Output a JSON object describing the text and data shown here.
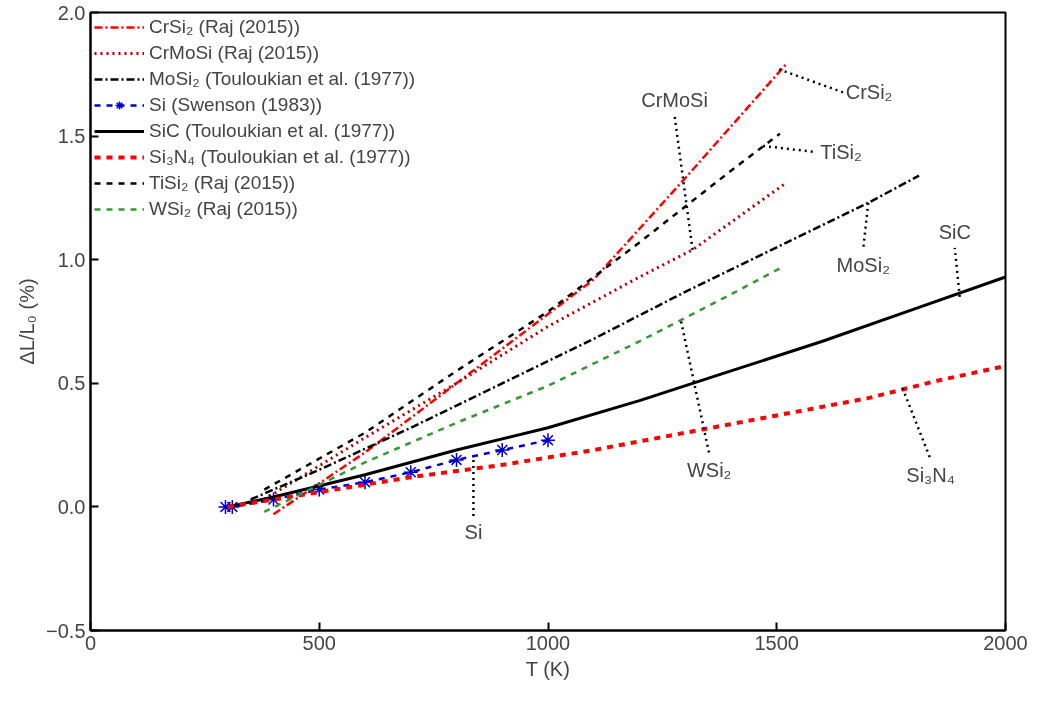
{
  "chart_data": {
    "type": "line",
    "xlabel": "T (K)",
    "ylabel": "ΔL/L₀ (%)",
    "xlim": [
      0,
      2000
    ],
    "xticks": [
      0,
      500,
      1000,
      1500,
      2000
    ],
    "ylim": [
      -0.5,
      2.0
    ],
    "yticks": [
      {
        "value": -0.5,
        "label": "−0.5"
      },
      {
        "value": 0,
        "label": "0.0"
      },
      {
        "value": 0.5,
        "label": "0.5"
      },
      {
        "value": 1.0,
        "label": "1.0"
      },
      {
        "value": 1.5,
        "label": "1.5"
      },
      {
        "value": 2.0,
        "label": "2.0"
      }
    ],
    "grid": false,
    "legend": "top left",
    "series": [
      {
        "name": "CrSi₂ (Raj (2015))",
        "color": "#ff0000",
        "line_style": "dashdot",
        "x": [
          400,
          600,
          800,
          1000,
          1100,
          1300,
          1520
        ],
        "values": [
          -0.03,
          0.22,
          0.5,
          0.78,
          0.92,
          1.33,
          1.79
        ]
      },
      {
        "name": "CrMoSi (Raj (2015))",
        "color": "#b00000",
        "line_style": "dotted",
        "x": [
          380,
          600,
          800,
          1000,
          1200,
          1316,
          1520
        ],
        "values": [
          0.03,
          0.28,
          0.5,
          0.73,
          0.93,
          1.04,
          1.31
        ]
      },
      {
        "name": "MoSi₂ (Touloukian et al. (1977))",
        "color": "#000000",
        "line_style": "dashdot",
        "x": [
          350,
          500,
          700,
          900,
          1100,
          1300,
          1500,
          1700,
          1811
        ],
        "values": [
          0.03,
          0.15,
          0.32,
          0.5,
          0.68,
          0.87,
          1.05,
          1.23,
          1.34
        ]
      },
      {
        "name": "Si (Swenson (1983))",
        "color": "#0000cc",
        "line_style": "dashed",
        "marker": "cross",
        "x": [
          295,
          310,
          400,
          500,
          600,
          700,
          800,
          900,
          1000
        ],
        "values": [
          0.0,
          0.0,
          0.03,
          0.07,
          0.1,
          0.14,
          0.19,
          0.23,
          0.27
        ]
      },
      {
        "name": "SiC (Touloukian et al. (1977))",
        "color": "#000000",
        "line_style": "solid",
        "x": [
          300,
          400,
          600,
          800,
          1000,
          1200,
          1400,
          1600,
          1800,
          2000
        ],
        "values": [
          0.0,
          0.04,
          0.13,
          0.23,
          0.32,
          0.43,
          0.55,
          0.67,
          0.8,
          0.93
        ]
      },
      {
        "name": "Si₃N₄ (Touloukian et al. (1977))",
        "color": "#ff0000",
        "line_style": "dashed",
        "x": [
          300,
          500,
          700,
          900,
          1100,
          1300,
          1500,
          1700,
          1850,
          2000
        ],
        "values": [
          0.0,
          0.06,
          0.12,
          0.17,
          0.23,
          0.3,
          0.37,
          0.44,
          0.51,
          0.57
        ]
      },
      {
        "name": "TiSi₂ (Raj (2015))",
        "color": "#000000",
        "line_style": "dashed",
        "x": [
          380,
          600,
          800,
          1000,
          1200,
          1400,
          1507
        ],
        "values": [
          0.07,
          0.3,
          0.55,
          0.79,
          1.07,
          1.36,
          1.51
        ]
      },
      {
        "name": "WSi₂ (Raj (2015))",
        "color": "#339933",
        "line_style": "dashed",
        "x": [
          380,
          600,
          800,
          1000,
          1200,
          1400,
          1512
        ],
        "values": [
          -0.02,
          0.18,
          0.34,
          0.49,
          0.67,
          0.86,
          0.97
        ]
      }
    ],
    "annotations": [
      {
        "text": "CrMoSi",
        "x": 1316,
        "y": 1.04
      },
      {
        "text": "CrSi₂",
        "x": 1505,
        "y": 1.77
      },
      {
        "text": "TiSi₂",
        "x": 1470,
        "y": 1.46
      },
      {
        "text": "MoSi₂",
        "x": 1700,
        "y": 1.23
      },
      {
        "text": "SiC",
        "x": 1900,
        "y": 0.85
      },
      {
        "text": "WSi₂",
        "x": 1291,
        "y": 0.75
      },
      {
        "text": "Si₃N₄",
        "x": 1775,
        "y": 0.48
      },
      {
        "text": "Si",
        "x": 837,
        "y": 0.19
      }
    ]
  }
}
